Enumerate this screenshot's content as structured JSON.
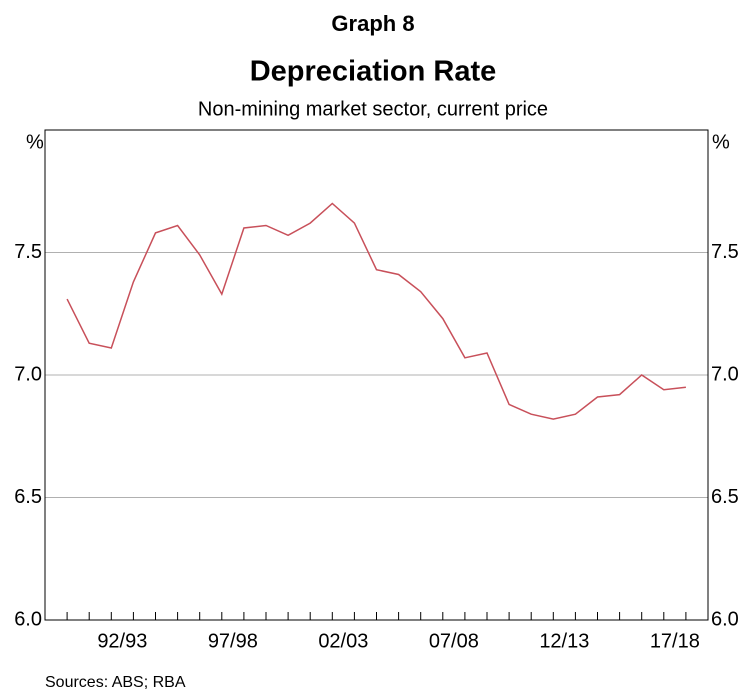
{
  "chart_data": {
    "type": "line",
    "graph_label": "Graph 8",
    "title": "Depreciation Rate",
    "subtitle": "Non-mining market sector, current price",
    "y_unit": "%",
    "source": "Sources:   ABS; RBA",
    "categories": [
      null,
      null,
      null,
      "92/93",
      null,
      null,
      null,
      null,
      "97/98",
      null,
      null,
      null,
      null,
      "02/03",
      null,
      null,
      null,
      null,
      "07/08",
      null,
      null,
      null,
      null,
      "12/13",
      null,
      null,
      null,
      null,
      "17/18"
    ],
    "series": [
      {
        "name": "Depreciation rate",
        "color": "#c8505a",
        "values": [
          7.31,
          7.13,
          7.11,
          7.38,
          7.58,
          7.61,
          7.49,
          7.33,
          7.6,
          7.61,
          7.57,
          7.62,
          7.7,
          7.62,
          7.43,
          7.41,
          7.34,
          7.23,
          7.07,
          7.09,
          6.88,
          6.84,
          6.82,
          6.84,
          6.91,
          6.92,
          7.0,
          6.94,
          6.95
        ]
      }
    ],
    "ylim": [
      6,
      8
    ],
    "yticks": [
      {
        "value": 6,
        "label": "6.0"
      },
      6.5,
      {
        "value": 7,
        "label": "7.0"
      },
      7.5
    ],
    "grid": true
  }
}
